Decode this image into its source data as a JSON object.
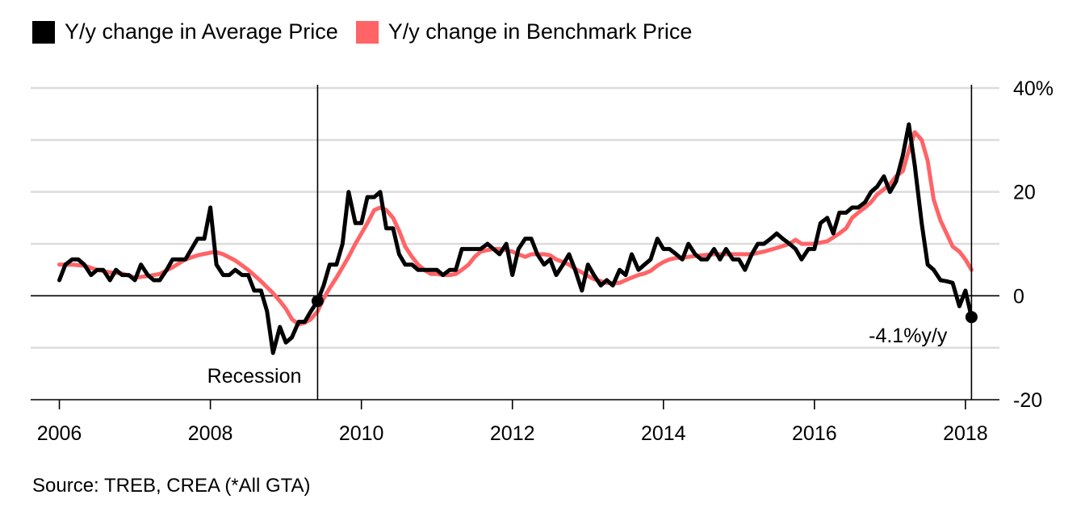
{
  "chart_data": {
    "type": "line",
    "legend": [
      {
        "label": "Y/y change in Average Price",
        "color": "#000000"
      },
      {
        "label": "Y/y change in Benchmark Price",
        "color": "#ff6466"
      }
    ],
    "x_ticks": [
      "2006",
      "2008",
      "2010",
      "2012",
      "2014",
      "2016",
      "2018"
    ],
    "x_tick_values": [
      2006,
      2008,
      2010,
      2012,
      2014,
      2016,
      2018
    ],
    "y_ticks": [
      {
        "value": 40,
        "label": "40%"
      },
      {
        "value": 20,
        "label": "20"
      },
      {
        "value": 0,
        "label": "0"
      },
      {
        "value": -20,
        "label": "-20"
      }
    ],
    "y_gridlines": [
      40,
      30,
      20,
      10,
      0,
      -10,
      -20
    ],
    "xlim": [
      2005.62,
      2018.45
    ],
    "ylim": [
      -20,
      40
    ],
    "annotations": [
      {
        "name": "recession",
        "label": "Recession",
        "x": 2009.42
      },
      {
        "name": "latest",
        "label": "-4.1%y/y",
        "x": 2018.08,
        "y": -4.1
      }
    ],
    "series": [
      {
        "name": "Y/y change in Average Price",
        "color": "#000000",
        "points": [
          [
            2006.0,
            3
          ],
          [
            2006.08,
            6
          ],
          [
            2006.17,
            7
          ],
          [
            2006.25,
            7
          ],
          [
            2006.33,
            6
          ],
          [
            2006.42,
            4
          ],
          [
            2006.5,
            5
          ],
          [
            2006.58,
            5
          ],
          [
            2006.67,
            3
          ],
          [
            2006.75,
            5
          ],
          [
            2006.83,
            4
          ],
          [
            2006.92,
            4
          ],
          [
            2007.0,
            3
          ],
          [
            2007.08,
            6
          ],
          [
            2007.17,
            4
          ],
          [
            2007.25,
            3
          ],
          [
            2007.33,
            3
          ],
          [
            2007.42,
            5
          ],
          [
            2007.5,
            7
          ],
          [
            2007.58,
            7
          ],
          [
            2007.67,
            7
          ],
          [
            2007.75,
            9
          ],
          [
            2007.83,
            11
          ],
          [
            2007.92,
            11
          ],
          [
            2008.0,
            17
          ],
          [
            2008.08,
            6
          ],
          [
            2008.17,
            4
          ],
          [
            2008.25,
            4
          ],
          [
            2008.33,
            5
          ],
          [
            2008.42,
            4
          ],
          [
            2008.5,
            4
          ],
          [
            2008.58,
            1
          ],
          [
            2008.67,
            1
          ],
          [
            2008.75,
            -3
          ],
          [
            2008.83,
            -11
          ],
          [
            2008.92,
            -6
          ],
          [
            2009.0,
            -9
          ],
          [
            2009.08,
            -8
          ],
          [
            2009.17,
            -5
          ],
          [
            2009.25,
            -5
          ],
          [
            2009.33,
            -3
          ],
          [
            2009.42,
            -1
          ],
          [
            2009.5,
            2
          ],
          [
            2009.58,
            6
          ],
          [
            2009.67,
            6
          ],
          [
            2009.75,
            10
          ],
          [
            2009.83,
            20
          ],
          [
            2009.92,
            14
          ],
          [
            2010.0,
            14
          ],
          [
            2010.08,
            19
          ],
          [
            2010.17,
            19
          ],
          [
            2010.25,
            20
          ],
          [
            2010.33,
            13
          ],
          [
            2010.42,
            13
          ],
          [
            2010.5,
            8
          ],
          [
            2010.58,
            6
          ],
          [
            2010.67,
            6
          ],
          [
            2010.75,
            5
          ],
          [
            2010.83,
            5
          ],
          [
            2010.92,
            5
          ],
          [
            2011.0,
            5
          ],
          [
            2011.08,
            4
          ],
          [
            2011.17,
            5
          ],
          [
            2011.25,
            5
          ],
          [
            2011.33,
            9
          ],
          [
            2011.42,
            9
          ],
          [
            2011.5,
            9
          ],
          [
            2011.58,
            9
          ],
          [
            2011.67,
            10
          ],
          [
            2011.75,
            9
          ],
          [
            2011.83,
            8
          ],
          [
            2011.92,
            10
          ],
          [
            2012.0,
            4
          ],
          [
            2012.08,
            9
          ],
          [
            2012.17,
            11
          ],
          [
            2012.25,
            11
          ],
          [
            2012.33,
            8
          ],
          [
            2012.42,
            6
          ],
          [
            2012.5,
            7
          ],
          [
            2012.58,
            4
          ],
          [
            2012.67,
            6
          ],
          [
            2012.75,
            8
          ],
          [
            2012.83,
            5
          ],
          [
            2012.92,
            1
          ],
          [
            2013.0,
            6
          ],
          [
            2013.08,
            4
          ],
          [
            2013.17,
            2
          ],
          [
            2013.25,
            3
          ],
          [
            2013.33,
            2
          ],
          [
            2013.42,
            5
          ],
          [
            2013.5,
            4
          ],
          [
            2013.58,
            8
          ],
          [
            2013.67,
            5
          ],
          [
            2013.75,
            6
          ],
          [
            2013.83,
            7
          ],
          [
            2013.92,
            11
          ],
          [
            2014.0,
            9
          ],
          [
            2014.08,
            9
          ],
          [
            2014.17,
            8
          ],
          [
            2014.25,
            7
          ],
          [
            2014.33,
            10
          ],
          [
            2014.42,
            8
          ],
          [
            2014.5,
            7
          ],
          [
            2014.58,
            7
          ],
          [
            2014.67,
            9
          ],
          [
            2014.75,
            7
          ],
          [
            2014.83,
            9
          ],
          [
            2014.92,
            7
          ],
          [
            2015.0,
            7
          ],
          [
            2015.08,
            5
          ],
          [
            2015.17,
            8
          ],
          [
            2015.25,
            10
          ],
          [
            2015.33,
            10
          ],
          [
            2015.42,
            11
          ],
          [
            2015.5,
            12
          ],
          [
            2015.58,
            11
          ],
          [
            2015.67,
            10
          ],
          [
            2015.75,
            9
          ],
          [
            2015.83,
            7
          ],
          [
            2015.92,
            9
          ],
          [
            2016.0,
            9
          ],
          [
            2016.08,
            14
          ],
          [
            2016.17,
            15
          ],
          [
            2016.25,
            12
          ],
          [
            2016.33,
            16
          ],
          [
            2016.42,
            16
          ],
          [
            2016.5,
            17
          ],
          [
            2016.58,
            17
          ],
          [
            2016.67,
            18
          ],
          [
            2016.75,
            20
          ],
          [
            2016.83,
            21
          ],
          [
            2016.92,
            23
          ],
          [
            2017.0,
            20
          ],
          [
            2017.08,
            22
          ],
          [
            2017.17,
            27
          ],
          [
            2017.25,
            33
          ],
          [
            2017.33,
            25
          ],
          [
            2017.42,
            14
          ],
          [
            2017.5,
            6
          ],
          [
            2017.58,
            5
          ],
          [
            2017.67,
            3
          ],
          [
            2017.75,
            2.8
          ],
          [
            2017.83,
            2.5
          ],
          [
            2017.92,
            -2
          ],
          [
            2018.0,
            1
          ],
          [
            2018.08,
            -4.1
          ]
        ]
      },
      {
        "name": "Y/y change in Benchmark Price",
        "color": "#ff6466",
        "points": [
          [
            2006.0,
            6
          ],
          [
            2006.17,
            6
          ],
          [
            2006.33,
            5.8
          ],
          [
            2006.5,
            5
          ],
          [
            2006.67,
            4.5
          ],
          [
            2006.83,
            4.3
          ],
          [
            2007.0,
            3.5
          ],
          [
            2007.17,
            3.8
          ],
          [
            2007.33,
            4.2
          ],
          [
            2007.5,
            5.5
          ],
          [
            2007.67,
            7
          ],
          [
            2007.83,
            7.8
          ],
          [
            2008.0,
            8.3
          ],
          [
            2008.08,
            8.4
          ],
          [
            2008.17,
            8
          ],
          [
            2008.33,
            6.8
          ],
          [
            2008.5,
            5
          ],
          [
            2008.67,
            2.8
          ],
          [
            2008.83,
            0.5
          ],
          [
            2008.92,
            -1
          ],
          [
            2009.0,
            -2.5
          ],
          [
            2009.08,
            -4.5
          ],
          [
            2009.17,
            -5.5
          ],
          [
            2009.25,
            -5.2
          ],
          [
            2009.33,
            -4.5
          ],
          [
            2009.42,
            -3
          ],
          [
            2009.5,
            -0.5
          ],
          [
            2009.58,
            1.5
          ],
          [
            2009.67,
            3.5
          ],
          [
            2009.75,
            5.5
          ],
          [
            2009.83,
            7.5
          ],
          [
            2009.92,
            10
          ],
          [
            2010.0,
            12
          ],
          [
            2010.08,
            14
          ],
          [
            2010.17,
            16.5
          ],
          [
            2010.25,
            17
          ],
          [
            2010.33,
            16.5
          ],
          [
            2010.42,
            15
          ],
          [
            2010.5,
            12.5
          ],
          [
            2010.58,
            9.5
          ],
          [
            2010.67,
            7.5
          ],
          [
            2010.75,
            6
          ],
          [
            2010.83,
            5
          ],
          [
            2010.92,
            4.2
          ],
          [
            2011.0,
            4.2
          ],
          [
            2011.08,
            4
          ],
          [
            2011.17,
            4
          ],
          [
            2011.25,
            4.2
          ],
          [
            2011.33,
            5
          ],
          [
            2011.42,
            6
          ],
          [
            2011.5,
            7.5
          ],
          [
            2011.58,
            8.5
          ],
          [
            2011.67,
            8.8
          ],
          [
            2011.75,
            9
          ],
          [
            2011.83,
            9
          ],
          [
            2011.92,
            8.8
          ],
          [
            2012.0,
            8.5
          ],
          [
            2012.08,
            8
          ],
          [
            2012.17,
            7.5
          ],
          [
            2012.25,
            8
          ],
          [
            2012.33,
            8
          ],
          [
            2012.42,
            8
          ],
          [
            2012.5,
            7.8
          ],
          [
            2012.58,
            7
          ],
          [
            2012.67,
            6.5
          ],
          [
            2012.75,
            6
          ],
          [
            2012.83,
            5.2
          ],
          [
            2012.92,
            4.5
          ],
          [
            2013.0,
            3.8
          ],
          [
            2013.08,
            3.2
          ],
          [
            2013.17,
            2.8
          ],
          [
            2013.25,
            2.5
          ],
          [
            2013.33,
            2.4
          ],
          [
            2013.42,
            2.5
          ],
          [
            2013.5,
            3
          ],
          [
            2013.58,
            3.5
          ],
          [
            2013.67,
            4
          ],
          [
            2013.75,
            4.3
          ],
          [
            2013.83,
            4.8
          ],
          [
            2013.92,
            5.8
          ],
          [
            2014.0,
            6.5
          ],
          [
            2014.08,
            7
          ],
          [
            2014.17,
            7.3
          ],
          [
            2014.25,
            7.3
          ],
          [
            2014.33,
            7.5
          ],
          [
            2014.5,
            7.8
          ],
          [
            2014.67,
            8
          ],
          [
            2014.83,
            8
          ],
          [
            2015.0,
            8
          ],
          [
            2015.17,
            8
          ],
          [
            2015.33,
            8.5
          ],
          [
            2015.5,
            9.2
          ],
          [
            2015.67,
            10
          ],
          [
            2015.75,
            10.8
          ],
          [
            2015.83,
            10
          ],
          [
            2016.0,
            10
          ],
          [
            2016.17,
            10.5
          ],
          [
            2016.33,
            12
          ],
          [
            2016.42,
            13
          ],
          [
            2016.5,
            15
          ],
          [
            2016.58,
            16
          ],
          [
            2016.67,
            17
          ],
          [
            2016.75,
            18
          ],
          [
            2016.83,
            19.5
          ],
          [
            2016.92,
            20.5
          ],
          [
            2017.0,
            21.5
          ],
          [
            2017.08,
            23
          ],
          [
            2017.17,
            24
          ],
          [
            2017.25,
            28
          ],
          [
            2017.33,
            31.5
          ],
          [
            2017.42,
            30
          ],
          [
            2017.5,
            26
          ],
          [
            2017.58,
            18.5
          ],
          [
            2017.67,
            14.5
          ],
          [
            2017.75,
            12
          ],
          [
            2017.83,
            9.5
          ],
          [
            2017.92,
            8.5
          ],
          [
            2018.0,
            7
          ],
          [
            2018.08,
            5
          ]
        ]
      }
    ]
  },
  "source": "Source: TREB, CREA (*All GTA)"
}
